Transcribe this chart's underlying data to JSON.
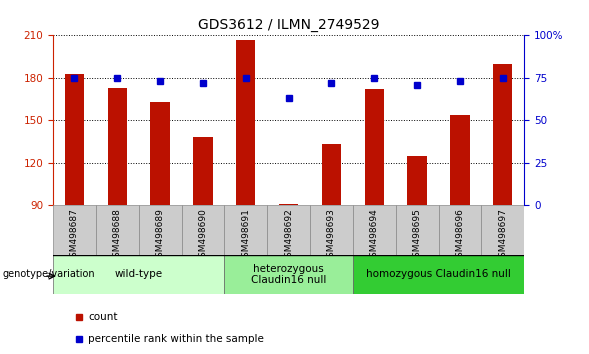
{
  "title": "GDS3612 / ILMN_2749529",
  "samples": [
    "GSM498687",
    "GSM498688",
    "GSM498689",
    "GSM498690",
    "GSM498691",
    "GSM498692",
    "GSM498693",
    "GSM498694",
    "GSM498695",
    "GSM498696",
    "GSM498697"
  ],
  "counts": [
    183,
    173,
    163,
    138,
    207,
    91,
    133,
    172,
    125,
    154,
    190
  ],
  "percentile_ranks": [
    75,
    75,
    73,
    72,
    75,
    63,
    72,
    75,
    71,
    73,
    75
  ],
  "y_min": 90,
  "y_max": 210,
  "y_ticks": [
    90,
    120,
    150,
    180,
    210
  ],
  "right_y_ticks": [
    0,
    25,
    50,
    75,
    100
  ],
  "right_y_labels": [
    "0",
    "25",
    "50",
    "75",
    "100%"
  ],
  "bar_color": "#bb1100",
  "dot_color": "#0000cc",
  "groups": [
    {
      "label": "wild-type",
      "start": 0,
      "end": 3,
      "color": "#ccffcc"
    },
    {
      "label": "heterozygous\nClaudin16 null",
      "start": 4,
      "end": 6,
      "color": "#99ee99"
    },
    {
      "label": "homozygous Claudin16 null",
      "start": 7,
      "end": 10,
      "color": "#33cc33"
    }
  ],
  "genotype_label": "genotype/variation",
  "legend_count_label": "count",
  "legend_pct_label": "percentile rank within the sample",
  "ylabel_left_color": "#cc2200",
  "ylabel_right_color": "#0000cc",
  "plot_bg_color": "#ffffff",
  "grid_color": "#000000",
  "sample_box_color": "#cccccc",
  "title_fontsize": 10,
  "tick_fontsize": 7.5,
  "sample_fontsize": 6.5,
  "group_fontsize": 7.5,
  "legend_fontsize": 7.5,
  "geno_fontsize": 7
}
